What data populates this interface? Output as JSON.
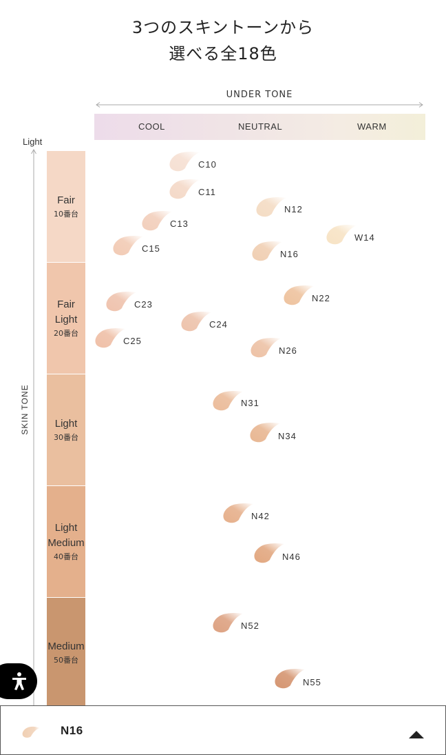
{
  "header": {
    "title_line1": "3つのスキントーンから",
    "title_line2": "選べる全18色"
  },
  "under_tone": {
    "label": "UNDER TONE",
    "columns": [
      "COOL",
      "NEUTRAL",
      "WARM"
    ]
  },
  "skin_tone": {
    "axis_label": "SKIN TONE",
    "top_label": "Light",
    "bands": [
      {
        "name_lines": [
          "Fair"
        ],
        "number": "10番台",
        "color": "#f5d8c6"
      },
      {
        "name_lines": [
          "Fair",
          "Light"
        ],
        "number": "20番台",
        "color": "#f0c6ac"
      },
      {
        "name_lines": [
          "Light"
        ],
        "number": "30番台",
        "color": "#eabf9f"
      },
      {
        "name_lines": [
          "Light",
          "Medium"
        ],
        "number": "40番台",
        "color": "#e4b08c"
      },
      {
        "name_lines": [
          "Medium"
        ],
        "number": "50番台",
        "color": "#c9966f"
      }
    ]
  },
  "shades": [
    {
      "code": "C10",
      "color": "#f6e0d3"
    },
    {
      "code": "C11",
      "color": "#f4d9c8"
    },
    {
      "code": "N12",
      "color": "#f4dcc4"
    },
    {
      "code": "C13",
      "color": "#f2cfbc"
    },
    {
      "code": "W14",
      "color": "#f7e3c5"
    },
    {
      "code": "C15",
      "color": "#f2cbb5"
    },
    {
      "code": "N16",
      "color": "#f0cfb3"
    },
    {
      "code": "N22",
      "color": "#eec39f"
    },
    {
      "code": "C23",
      "color": "#efc3ae"
    },
    {
      "code": "C24",
      "color": "#edc3ac"
    },
    {
      "code": "C25",
      "color": "#efc0a8"
    },
    {
      "code": "N26",
      "color": "#edc2a6"
    },
    {
      "code": "N31",
      "color": "#ebbc9b"
    },
    {
      "code": "N34",
      "color": "#e8b793"
    },
    {
      "code": "N42",
      "color": "#e6b08c"
    },
    {
      "code": "N46",
      "color": "#e2a881"
    },
    {
      "code": "N52",
      "color": "#dda282"
    },
    {
      "code": "N55",
      "color": "#d59672"
    }
  ],
  "accessibility": {
    "icon": "accessibility-icon"
  },
  "selected": {
    "code": "N16",
    "color": "#f0cfb3",
    "caret_icon": "caret-up-icon"
  }
}
